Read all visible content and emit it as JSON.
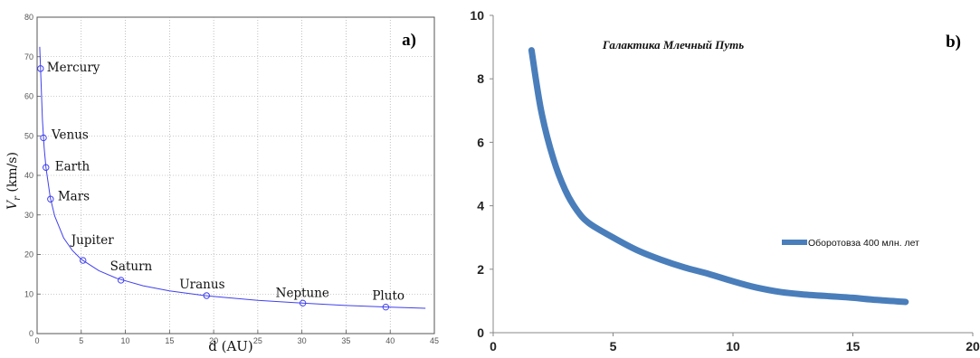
{
  "chart_data": [
    {
      "type": "scatter",
      "panel_label": "a)",
      "xlabel": "d (AU)",
      "ylabel": "V_r (km/s)",
      "xlim": [
        0,
        45
      ],
      "ylim": [
        0,
        80
      ],
      "xticks": [
        "0",
        "5",
        "10",
        "15",
        "20",
        "25",
        "30",
        "35",
        "40",
        "45"
      ],
      "yticks": [
        "0",
        "10",
        "20",
        "30",
        "40",
        "50",
        "60",
        "70",
        "80"
      ],
      "grid": true,
      "points": [
        {
          "name": "Mercury",
          "x": 0.39,
          "y": 67
        },
        {
          "name": "Venus",
          "x": 0.72,
          "y": 49.5
        },
        {
          "name": "Earth",
          "x": 1.0,
          "y": 42
        },
        {
          "name": "Mars",
          "x": 1.52,
          "y": 34
        },
        {
          "name": "Jupiter",
          "x": 5.2,
          "y": 18.5
        },
        {
          "name": "Saturn",
          "x": 9.5,
          "y": 13.5
        },
        {
          "name": "Uranus",
          "x": 19.2,
          "y": 9.6
        },
        {
          "name": "Neptune",
          "x": 30.1,
          "y": 7.7
        },
        {
          "name": "Pluto",
          "x": 39.5,
          "y": 6.7
        }
      ],
      "fit_curve": {
        "x": [
          0.3,
          0.4,
          0.6,
          0.8,
          1,
          1.5,
          2,
          3,
          4,
          5,
          7,
          9,
          12,
          15,
          19,
          25,
          30,
          35,
          40,
          44
        ],
        "y": [
          72.5,
          66.5,
          54,
          47,
          42,
          34.3,
          29.7,
          24.2,
          21,
          18.8,
          15.9,
          14,
          12.1,
          10.8,
          9.6,
          8.4,
          7.7,
          7.1,
          6.7,
          6.4
        ]
      },
      "line_color": "#4040ee"
    },
    {
      "type": "line",
      "panel_label": "b)",
      "title": "Галактика Млечный Путь",
      "xlim": [
        0,
        20
      ],
      "ylim": [
        0,
        10
      ],
      "xticks": [
        "0",
        "5",
        "10",
        "15",
        "20"
      ],
      "yticks": [
        "0",
        "2",
        "4",
        "6",
        "8",
        "10"
      ],
      "grid": false,
      "legend_position": "right",
      "series": [
        {
          "name": "Оборотовза 400 млн. лет",
          "color": "#4a7ebb",
          "x": [
            1.6,
            2.0,
            2.5,
            3.0,
            3.5,
            4.0,
            5.0,
            6.0,
            7.0,
            8.0,
            9.0,
            10.0,
            11.0,
            12.0,
            13.0,
            14.0,
            15.0,
            16.0,
            17.2
          ],
          "y": [
            8.9,
            7.0,
            5.5,
            4.5,
            3.85,
            3.45,
            3.0,
            2.6,
            2.3,
            2.05,
            1.85,
            1.62,
            1.42,
            1.28,
            1.2,
            1.15,
            1.1,
            1.03,
            0.97
          ]
        }
      ]
    }
  ]
}
